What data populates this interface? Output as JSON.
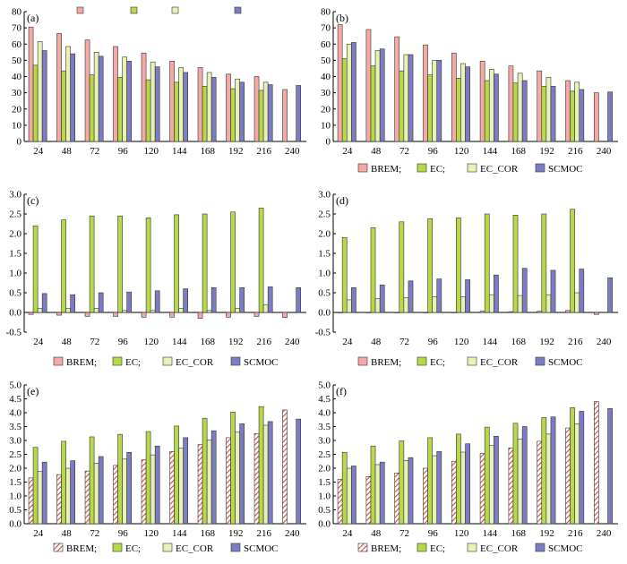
{
  "colors": {
    "BREM": "#f4aaa4",
    "EC": "#b8d84c",
    "EC_COR": "#e7f2b4",
    "SCMOC": "#7c7cc4",
    "BREM_hatch": "#d04a40"
  },
  "chart_data": [
    {
      "type": "bar",
      "panel_label": "(a)",
      "categories": [
        "24",
        "48",
        "72",
        "96",
        "120",
        "144",
        "168",
        "192",
        "216",
        "240"
      ],
      "ylim": [
        0,
        80
      ],
      "yticks": [
        "0",
        "10",
        "20",
        "30",
        "40",
        "50",
        "60",
        "70",
        "80"
      ],
      "legend_position": "top",
      "legend": [
        "",
        "",
        "",
        ""
      ],
      "series": [
        {
          "key": "BREM",
          "values": [
            70.5,
            66.5,
            62.5,
            58.5,
            54.5,
            49.5,
            45.5,
            41.5,
            40,
            32
          ]
        },
        {
          "key": "EC",
          "values": [
            47,
            43.5,
            41,
            39.5,
            38,
            36.5,
            34,
            32.5,
            31.5,
            null
          ]
        },
        {
          "key": "EC_COR",
          "values": [
            61.5,
            58.5,
            55,
            52,
            49,
            45.5,
            42.5,
            38.5,
            36.5,
            null
          ]
        },
        {
          "key": "SCMOC",
          "values": [
            56,
            54,
            52.5,
            49.5,
            46,
            42.5,
            39.5,
            36.5,
            35,
            34.5
          ]
        }
      ]
    },
    {
      "type": "bar",
      "panel_label": "(b)",
      "categories": [
        "24",
        "48",
        "72",
        "96",
        "120",
        "144",
        "168",
        "192",
        "216",
        "240"
      ],
      "ylim": [
        0,
        80
      ],
      "yticks": [
        "0",
        "10",
        "20",
        "30",
        "40",
        "50",
        "60",
        "70",
        "80"
      ],
      "legend_position": "bottom",
      "legend": [
        "BREM;",
        "EC;",
        "EC_COR",
        "SCMOC"
      ],
      "series": [
        {
          "key": "BREM",
          "values": [
            72,
            69,
            64.5,
            59.5,
            54.5,
            49.5,
            46.5,
            43.5,
            37.5,
            30
          ]
        },
        {
          "key": "EC",
          "values": [
            51,
            46.5,
            43.5,
            41,
            39,
            37.5,
            36,
            34,
            31,
            null
          ]
        },
        {
          "key": "EC_COR",
          "values": [
            60,
            56,
            53.5,
            50,
            48,
            44.5,
            42,
            39.5,
            36.5,
            null
          ]
        },
        {
          "key": "SCMOC",
          "values": [
            61,
            57,
            53.5,
            50,
            46,
            41.5,
            37.5,
            34,
            32,
            30.5
          ]
        }
      ]
    },
    {
      "type": "bar",
      "panel_label": "(c)",
      "categories": [
        "24",
        "48",
        "72",
        "96",
        "120",
        "144",
        "168",
        "192",
        "216",
        "240"
      ],
      "ylim": [
        -0.5,
        3
      ],
      "yticks": [
        "-0.5",
        "0.0",
        "0.5",
        "1.0",
        "1.5",
        "2.0",
        "2.5",
        "3.0"
      ],
      "legend_position": "bottom",
      "legend": [
        "BREM;",
        "EC;",
        "EC_COR",
        "SCMOC"
      ],
      "series": [
        {
          "key": "BREM",
          "values": [
            -0.05,
            -0.07,
            -0.1,
            -0.1,
            -0.12,
            -0.12,
            -0.15,
            -0.12,
            -0.1,
            -0.13
          ]
        },
        {
          "key": "EC",
          "values": [
            2.2,
            2.35,
            2.45,
            2.45,
            2.4,
            2.48,
            2.5,
            2.55,
            2.65,
            null
          ]
        },
        {
          "key": "EC_COR",
          "values": [
            0.1,
            0.1,
            0.1,
            0.05,
            0.05,
            0.1,
            0.05,
            0.1,
            0.2,
            null
          ]
        },
        {
          "key": "SCMOC",
          "values": [
            0.48,
            0.45,
            0.5,
            0.52,
            0.55,
            0.6,
            0.63,
            0.63,
            0.65,
            0.63
          ]
        }
      ]
    },
    {
      "type": "bar",
      "panel_label": "(d)",
      "categories": [
        "24",
        "48",
        "72",
        "96",
        "120",
        "144",
        "168",
        "192",
        "216",
        "240"
      ],
      "ylim": [
        -0.5,
        3
      ],
      "yticks": [
        "-0.5",
        "0.0",
        "0.5",
        "1.0",
        "1.5",
        "2.0",
        "2.5",
        "3.0"
      ],
      "legend_position": "bottom",
      "legend": [
        "BREM;",
        "EC;",
        "EC_COR",
        "SCMOC"
      ],
      "series": [
        {
          "key": "BREM",
          "values": [
            0,
            0,
            0,
            0,
            0,
            0.03,
            0.02,
            0.03,
            0.05,
            -0.05
          ]
        },
        {
          "key": "EC",
          "values": [
            1.9,
            2.15,
            2.3,
            2.38,
            2.4,
            2.5,
            2.47,
            2.5,
            2.62,
            null
          ]
        },
        {
          "key": "EC_COR",
          "values": [
            0.32,
            0.35,
            0.37,
            0.4,
            0.4,
            0.45,
            0.43,
            0.45,
            0.5,
            null
          ]
        },
        {
          "key": "SCMOC",
          "values": [
            0.63,
            0.7,
            0.8,
            0.85,
            0.83,
            0.95,
            1.12,
            1.07,
            1.1,
            0.88
          ]
        }
      ]
    },
    {
      "type": "bar",
      "panel_label": "(e)",
      "categories": [
        "24",
        "48",
        "72",
        "96",
        "120",
        "144",
        "168",
        "192",
        "216",
        "240"
      ],
      "ylim": [
        0,
        5
      ],
      "yticks": [
        "0.0",
        "0.5",
        "1.0",
        "1.5",
        "2.0",
        "2.5",
        "3.0",
        "3.5",
        "4.0",
        "4.5",
        "5.0"
      ],
      "legend_position": "bottom",
      "legend": [
        "BREM;",
        "EC;",
        "EC_COR",
        "SCMOC"
      ],
      "series": [
        {
          "key": "BREM",
          "values": [
            1.65,
            1.77,
            1.9,
            2.1,
            2.3,
            2.6,
            2.85,
            3.1,
            3.25,
            4.1
          ]
        },
        {
          "key": "EC",
          "values": [
            2.75,
            2.97,
            3.13,
            3.22,
            3.32,
            3.52,
            3.8,
            4.02,
            4.22,
            null
          ]
        },
        {
          "key": "EC_COR",
          "values": [
            1.88,
            2.0,
            2.18,
            2.33,
            2.48,
            2.72,
            3.02,
            3.3,
            3.55,
            null
          ]
        },
        {
          "key": "SCMOC",
          "values": [
            2.22,
            2.27,
            2.42,
            2.57,
            2.8,
            3.1,
            3.35,
            3.6,
            3.68,
            3.77
          ]
        }
      ]
    },
    {
      "type": "bar",
      "panel_label": "(f)",
      "categories": [
        "24",
        "48",
        "72",
        "96",
        "120",
        "144",
        "168",
        "192",
        "216",
        "240"
      ],
      "ylim": [
        0,
        5
      ],
      "yticks": [
        "0.0",
        "0.5",
        "1.0",
        "1.5",
        "2.0",
        "2.5",
        "3.0",
        "3.5",
        "4.0",
        "4.5",
        "5.0"
      ],
      "legend_position": "bottom",
      "legend": [
        "BREM;",
        "EC;",
        "EC_COR",
        "SCMOC"
      ],
      "series": [
        {
          "key": "BREM",
          "values": [
            1.6,
            1.7,
            1.83,
            2.0,
            2.25,
            2.53,
            2.73,
            2.97,
            3.45,
            4.4
          ]
        },
        {
          "key": "EC",
          "values": [
            2.57,
            2.8,
            2.98,
            3.1,
            3.23,
            3.48,
            3.62,
            3.83,
            4.18,
            null
          ]
        },
        {
          "key": "EC_COR",
          "values": [
            2.0,
            2.13,
            2.28,
            2.45,
            2.58,
            2.82,
            3.05,
            3.23,
            3.6,
            null
          ]
        },
        {
          "key": "SCMOC",
          "values": [
            2.08,
            2.22,
            2.38,
            2.6,
            2.88,
            3.15,
            3.5,
            3.85,
            4.05,
            4.15
          ]
        }
      ]
    }
  ]
}
